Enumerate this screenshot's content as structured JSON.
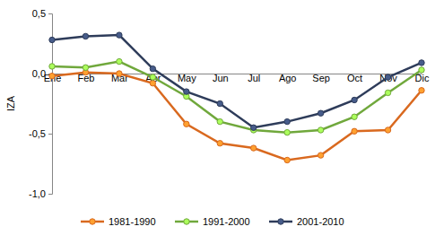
{
  "chart_data": {
    "type": "line",
    "y_label": "IZA",
    "categories": [
      "Ene",
      "Feb",
      "Mar",
      "Abr",
      "May",
      "Jun",
      "Jul",
      "Ago",
      "Sep",
      "Oct",
      "Nov",
      "Dic"
    ],
    "series": [
      {
        "name": "1981-1990",
        "color": "#d9691f",
        "marker": "circle",
        "values": [
          -0.02,
          0.01,
          0.0,
          -0.08,
          -0.42,
          -0.58,
          -0.62,
          -0.72,
          -0.68,
          -0.48,
          -0.47,
          -0.14
        ]
      },
      {
        "name": "1991-2000",
        "color": "#70a83c",
        "marker": "circle",
        "values": [
          0.06,
          0.05,
          0.1,
          -0.03,
          -0.19,
          -0.4,
          -0.47,
          -0.49,
          -0.47,
          -0.36,
          -0.16,
          0.03
        ]
      },
      {
        "name": "2001-2010",
        "color": "#2e3c5a",
        "marker": "circle",
        "values": [
          0.28,
          0.31,
          0.32,
          0.04,
          -0.15,
          -0.25,
          -0.45,
          -0.4,
          -0.33,
          -0.22,
          -0.03,
          0.09
        ]
      }
    ],
    "ylim": [
      -1.0,
      0.5
    ],
    "yticks": [
      {
        "value": -1.0,
        "label": "-1,0"
      },
      {
        "value": -0.5,
        "label": "-0,5"
      },
      {
        "value": 0.0,
        "label": "0,0"
      },
      {
        "value": 0.5,
        "label": "0,5"
      }
    ],
    "grid": false,
    "legend": "bottom"
  }
}
